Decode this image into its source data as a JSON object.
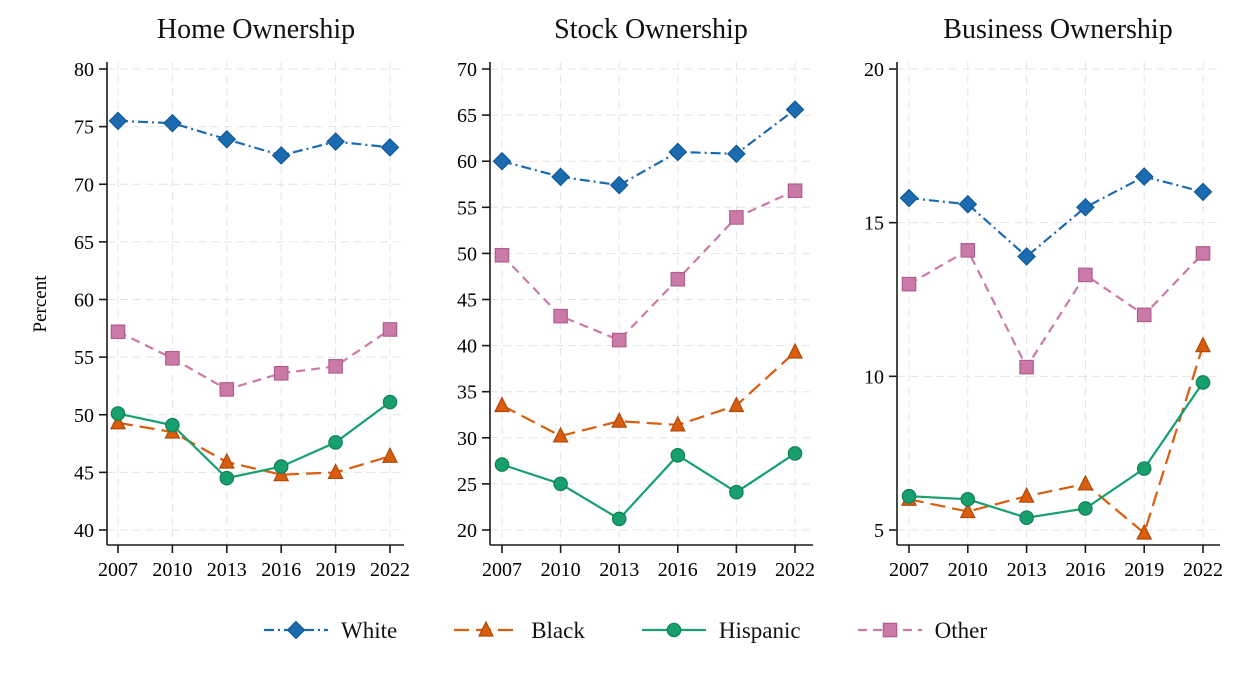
{
  "figure": {
    "background": "#ffffff"
  },
  "legend": {
    "items": [
      {
        "label": "White",
        "color": "#1b6bb1",
        "edge": "#135a94",
        "marker": "diamond",
        "dash": "dashdot"
      },
      {
        "label": "Black",
        "color": "#d85d0e",
        "edge": "#b04a08",
        "marker": "triangle",
        "dash": "longdash"
      },
      {
        "label": "Hispanic",
        "color": "#17a06e",
        "edge": "#0f8156",
        "marker": "circle",
        "dash": "solid"
      },
      {
        "label": "Other",
        "color": "#cb7aa8",
        "edge": "#b05e90",
        "marker": "square",
        "dash": "dash"
      }
    ]
  },
  "chart_data": [
    {
      "type": "line",
      "title": "Home Ownership",
      "ylabel": "Percent",
      "x": [
        "2007",
        "2010",
        "2013",
        "2016",
        "2019",
        "2022"
      ],
      "yticks": [
        40,
        45,
        50,
        55,
        60,
        65,
        70,
        75,
        80
      ],
      "ylim": [
        38.7,
        80.6
      ],
      "grid": true,
      "legend_position": "bottom",
      "series": [
        {
          "name": "White",
          "values": [
            75.5,
            75.3,
            73.9,
            72.5,
            73.7,
            73.2
          ]
        },
        {
          "name": "Black",
          "values": [
            49.3,
            48.5,
            45.9,
            44.8,
            45.0,
            46.4
          ]
        },
        {
          "name": "Hispanic",
          "values": [
            50.1,
            49.1,
            44.5,
            45.5,
            47.6,
            51.1
          ]
        },
        {
          "name": "Other",
          "values": [
            57.2,
            54.9,
            52.2,
            53.6,
            54.2,
            57.4
          ]
        }
      ]
    },
    {
      "type": "line",
      "title": "Stock Ownership",
      "x": [
        "2007",
        "2010",
        "2013",
        "2016",
        "2019",
        "2022"
      ],
      "yticks": [
        20,
        25,
        30,
        35,
        40,
        45,
        50,
        55,
        60,
        65,
        70
      ],
      "ylim": [
        18.6,
        70.8
      ],
      "grid": true,
      "legend_position": "bottom",
      "series": [
        {
          "name": "White",
          "values": [
            60.0,
            58.3,
            57.4,
            61.0,
            60.8,
            65.6
          ]
        },
        {
          "name": "Black",
          "values": [
            33.5,
            30.2,
            31.8,
            31.4,
            33.5,
            39.3
          ]
        },
        {
          "name": "Hispanic",
          "values": [
            27.1,
            25.0,
            21.2,
            28.1,
            24.1,
            28.3
          ]
        },
        {
          "name": "Other",
          "values": [
            49.8,
            43.2,
            40.6,
            47.2,
            53.9,
            56.8
          ]
        }
      ]
    },
    {
      "type": "line",
      "title": "Business Ownership",
      "x": [
        "2007",
        "2010",
        "2013",
        "2016",
        "2019",
        "2022"
      ],
      "yticks": [
        5,
        10,
        15,
        20
      ],
      "ylim": [
        4.4,
        20.5
      ],
      "grid": true,
      "legend_position": "bottom",
      "series": [
        {
          "name": "White",
          "values": [
            15.8,
            15.6,
            13.9,
            15.5,
            16.5,
            16.0
          ]
        },
        {
          "name": "Black",
          "values": [
            6.0,
            5.6,
            6.1,
            6.5,
            4.9,
            11.0
          ]
        },
        {
          "name": "Hispanic",
          "values": [
            6.1,
            6.0,
            5.4,
            5.7,
            7.0,
            9.8
          ]
        },
        {
          "name": "Other",
          "values": [
            13.0,
            14.1,
            10.3,
            13.3,
            12.0,
            14.0
          ]
        }
      ]
    }
  ]
}
